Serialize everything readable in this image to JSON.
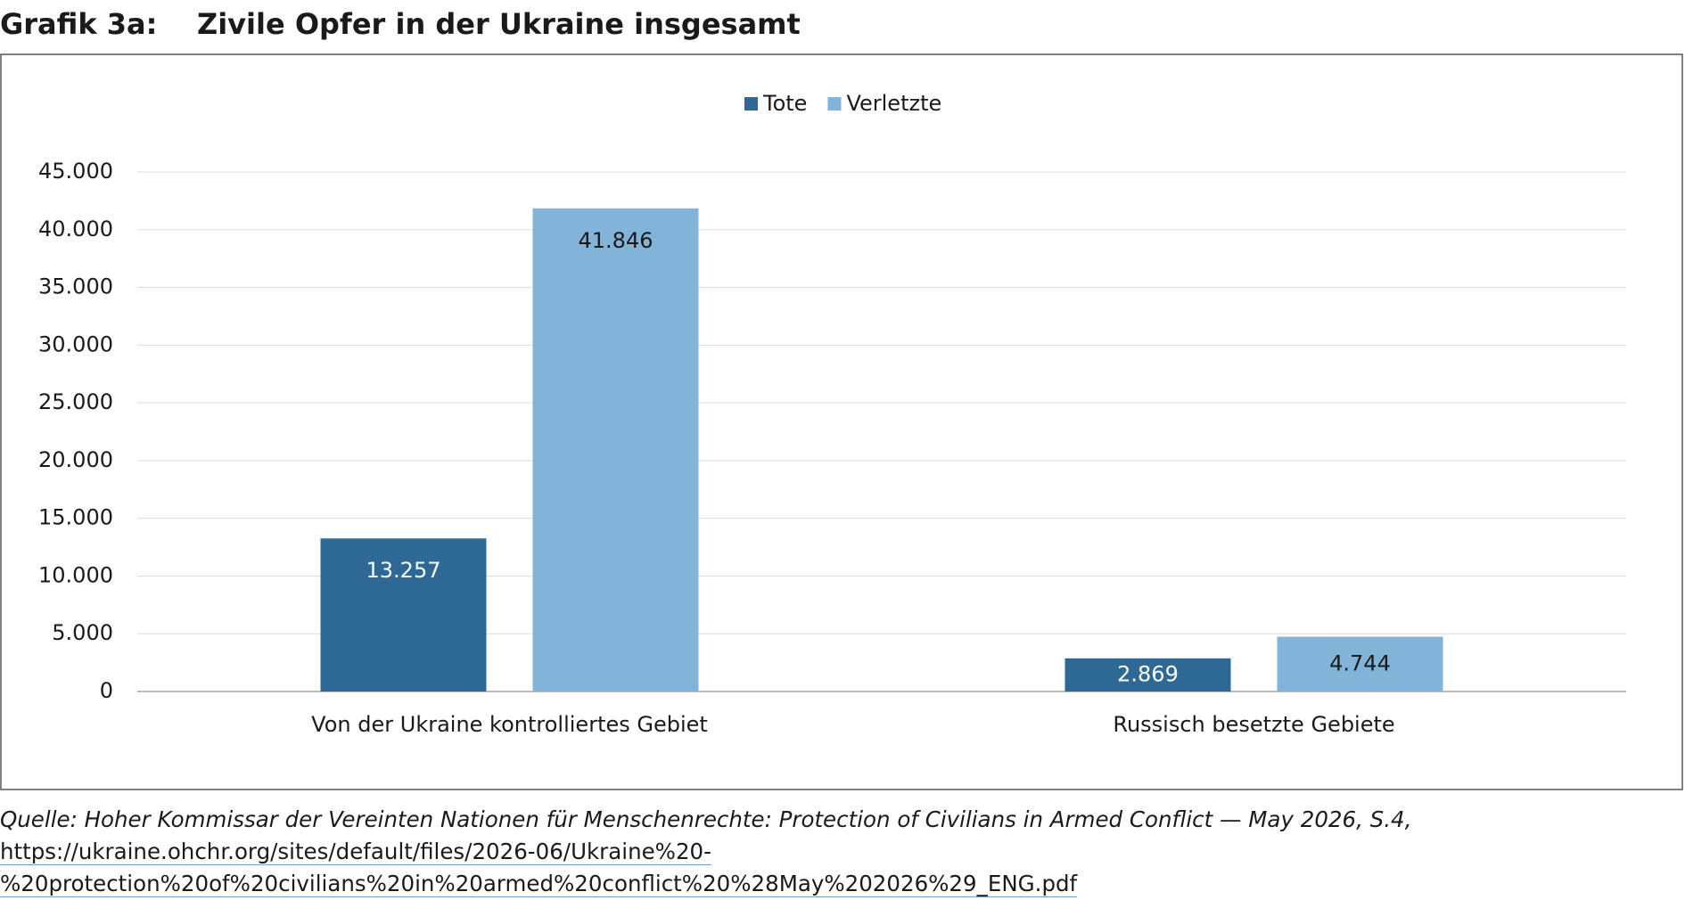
{
  "header": {
    "label": "Grafik 3a:",
    "title": "Zivile Opfer in der Ukraine insgesamt"
  },
  "chart_data": {
    "type": "bar",
    "categories": [
      "Von der Ukraine kontrolliertes Gebiet",
      "Russisch besetzte Gebiete"
    ],
    "series": [
      {
        "name": "Tote",
        "color": "#2e6894",
        "values": [
          13257,
          2869
        ],
        "value_labels": [
          "13.257",
          "2.869"
        ]
      },
      {
        "name": "Verletzte",
        "color": "#82b4da",
        "values": [
          41846,
          4744
        ],
        "value_labels": [
          "41.846",
          "4.744"
        ]
      }
    ],
    "ylim": [
      0,
      45000
    ],
    "yticks": [
      0,
      {
        "value": 5000,
        "label": "5.000"
      },
      {
        "value": 10000,
        "label": "10.000"
      },
      {
        "value": 15000,
        "label": "15.000"
      },
      {
        "value": 20000,
        "label": "20.000"
      },
      {
        "value": 25000,
        "label": "25.000"
      },
      {
        "value": 30000,
        "label": "30.000"
      },
      {
        "value": 35000,
        "label": "35.000"
      },
      {
        "value": 40000,
        "label": "40.000"
      },
      {
        "value": 45000,
        "label": "45.000"
      }
    ],
    "grid": true,
    "legend": "top"
  },
  "source": {
    "text": "Quelle: Hoher Kommissar der Vereinten Nationen für Menschenrechte: Protection of Civilians in Armed Conflict — May 2026, S.4,",
    "url": "https://ukraine.ohchr.org/sites/default/files/2026-06/Ukraine%20-%20protection%20of%20civilians%20in%20armed%20conflict%20%28May%202026%29_ENG.pdf"
  }
}
